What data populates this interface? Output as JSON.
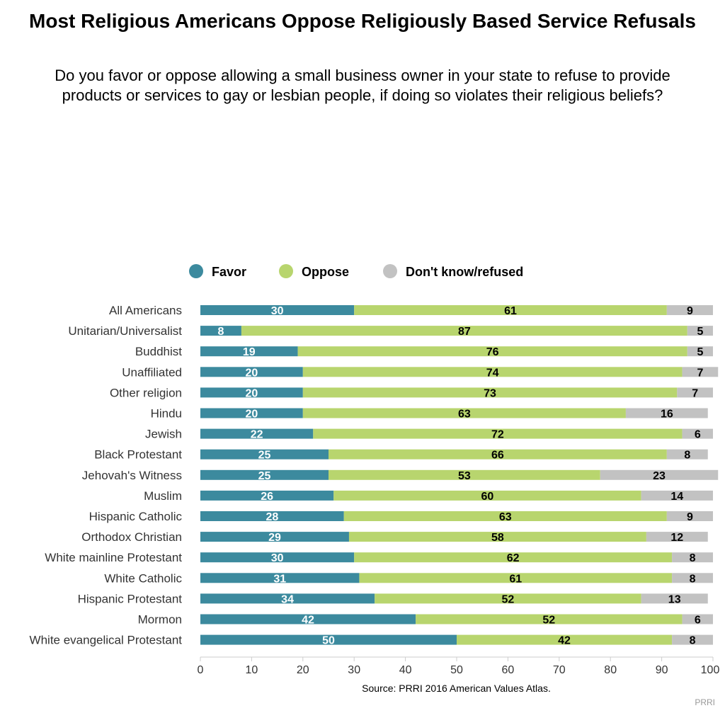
{
  "colors": {
    "favor": "#3c8a9e",
    "oppose": "#b8d56e",
    "dontknow": "#c2c2c2",
    "axis": "#cccccc"
  },
  "chart_data": {
    "type": "bar",
    "orientation": "horizontal",
    "stacked": true,
    "title": "Most Religious Americans Oppose Religiously Based Service Refusals",
    "subtitle": "Do you favor or oppose allowing a small business owner in your state to refuse to provide products or services to gay or lesbian people, if doing so violates their religious beliefs?",
    "legend_position": "top-center",
    "grid": false,
    "xlim": [
      0,
      100
    ],
    "xticks": [
      0,
      10,
      20,
      30,
      40,
      50,
      60,
      70,
      80,
      90,
      100
    ],
    "categories": [
      "All Americans",
      "Unitarian/Universalist",
      "Buddhist",
      "Unaffiliated",
      "Other religion",
      "Hindu",
      "Jewish",
      "Black Protestant",
      "Jehovah's Witness",
      "Muslim",
      "Hispanic Catholic",
      "Orthodox Christian",
      "White mainline Protestant",
      "White Catholic",
      "Hispanic Protestant",
      "Mormon",
      "White evangelical Protestant"
    ],
    "series": [
      {
        "name": "Favor",
        "values": [
          30,
          8,
          19,
          20,
          20,
          20,
          22,
          25,
          25,
          26,
          28,
          29,
          30,
          31,
          34,
          42,
          50
        ]
      },
      {
        "name": "Oppose",
        "values": [
          61,
          87,
          76,
          74,
          73,
          63,
          72,
          66,
          53,
          60,
          63,
          58,
          62,
          61,
          52,
          52,
          42
        ]
      },
      {
        "name": "Don't know/refused",
        "values": [
          9,
          5,
          5,
          7,
          7,
          16,
          6,
          8,
          23,
          14,
          9,
          12,
          8,
          8,
          13,
          6,
          8
        ]
      }
    ],
    "source": "Source: PRRI 2016 American Values Atlas.",
    "credit": "PRRI"
  }
}
